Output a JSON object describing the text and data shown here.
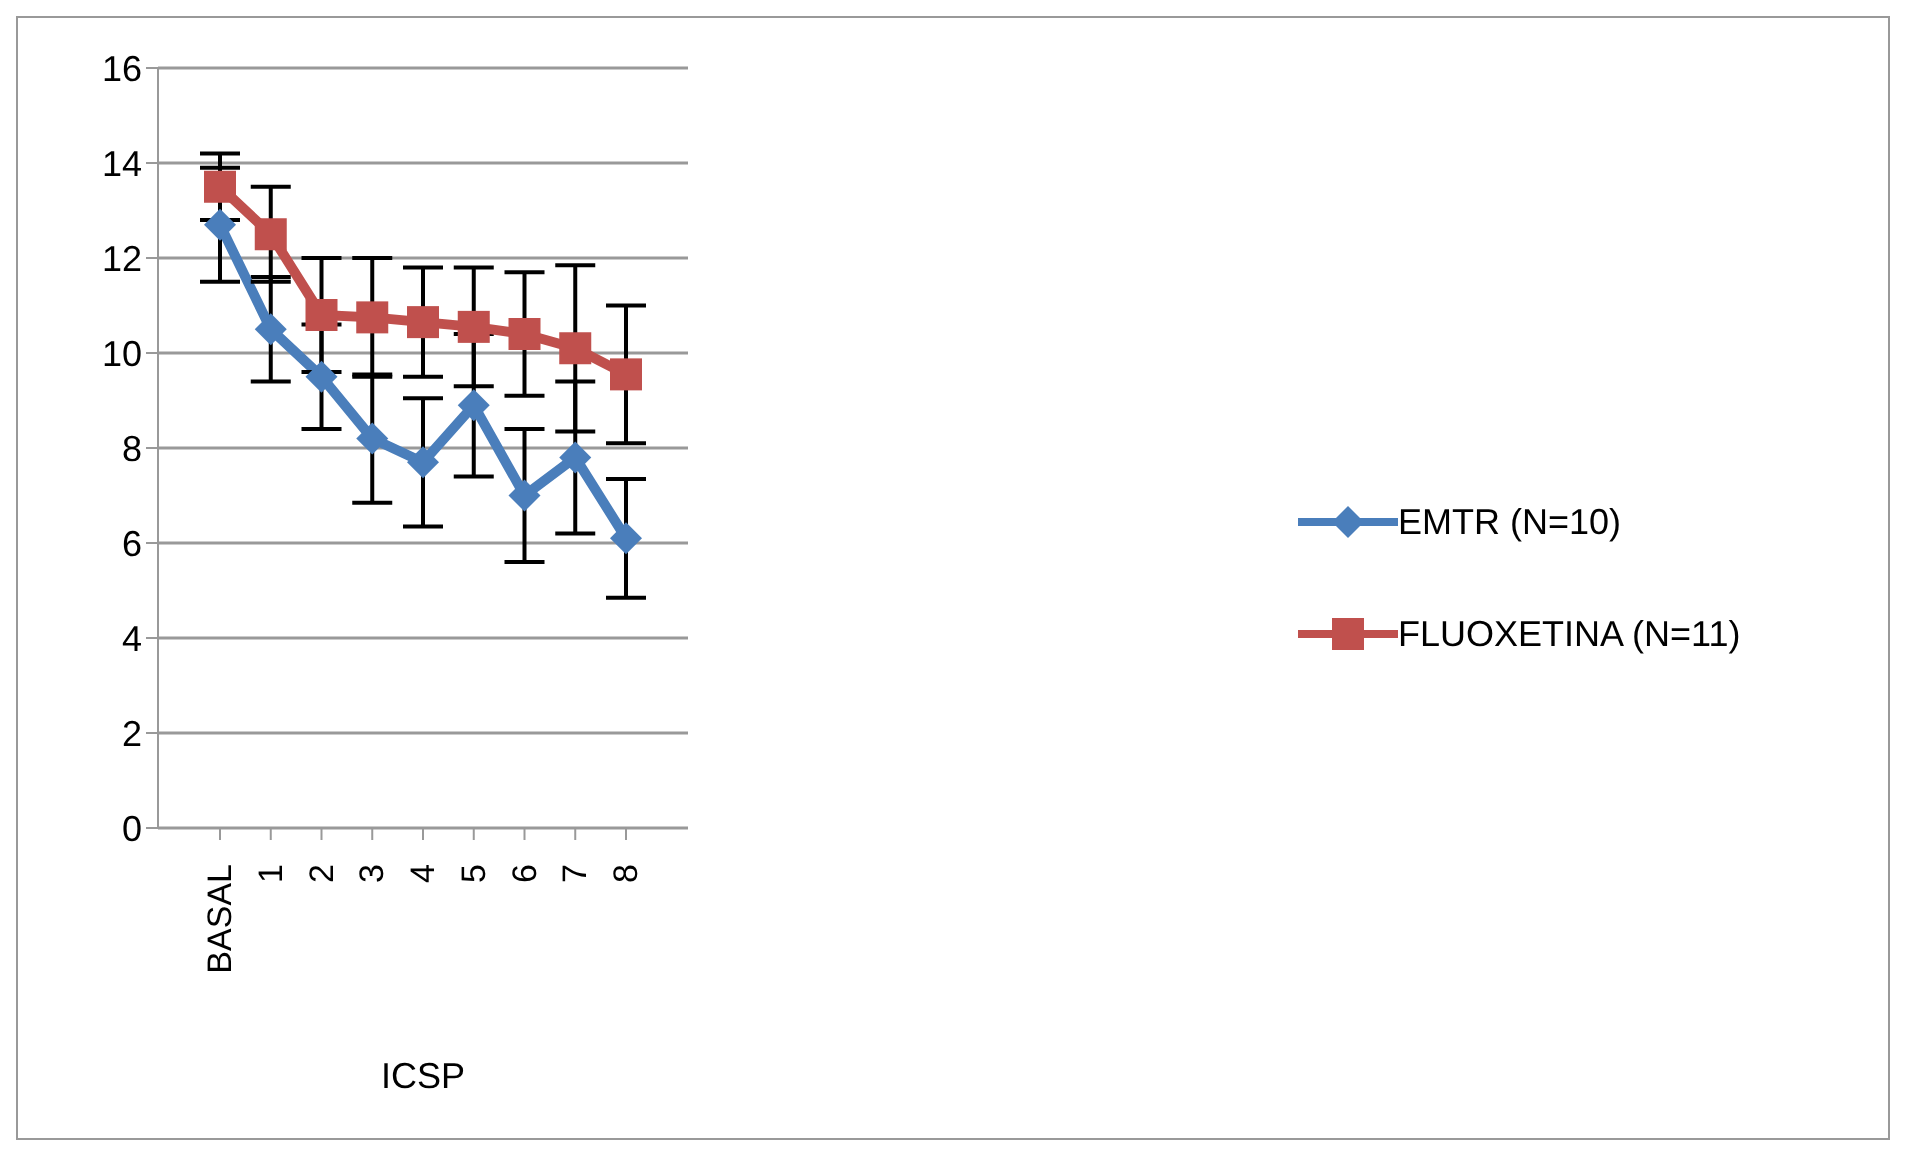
{
  "chart_data": {
    "type": "line",
    "xlabel": "ICSP",
    "categories": [
      "BASAL",
      "1",
      "2",
      "3",
      "4",
      "5",
      "6",
      "7",
      "8"
    ],
    "series": [
      {
        "name": "EMTR (N=10)",
        "color": "#4a7ebb",
        "marker": "diamond",
        "values": [
          12.7,
          10.5,
          9.5,
          8.2,
          7.7,
          8.9,
          7.0,
          7.8,
          6.1
        ],
        "errors": [
          1.2,
          1.1,
          1.1,
          1.35,
          1.35,
          1.5,
          1.4,
          1.6,
          1.25
        ]
      },
      {
        "name": "FLUOXETINA (N=11)",
        "color": "#c0504d",
        "marker": "square",
        "values": [
          13.5,
          12.5,
          10.8,
          10.75,
          10.65,
          10.55,
          10.4,
          10.1,
          9.55
        ],
        "errors": [
          0.7,
          1.0,
          1.2,
          1.25,
          1.15,
          1.25,
          1.3,
          1.75,
          1.45
        ]
      }
    ],
    "ylim": [
      0,
      16
    ],
    "yticks": [
      0,
      2,
      4,
      6,
      8,
      10,
      12,
      14,
      16
    ],
    "grid": "y",
    "legend": "right"
  }
}
